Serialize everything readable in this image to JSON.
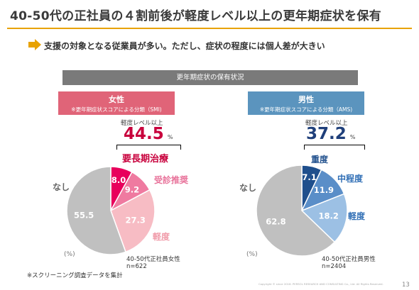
{
  "title": "40-50代の正社員の４割前後が軽度レベル以上の更年期症状を保有",
  "lead": "支援の対象となる従業員が多い。ただし、症状の程度には個人差が大きい",
  "panel_header": "更年期症状の保有状況",
  "footnote": "※スクリーニング調査データを集計",
  "copyright": "Copyright © since 2018. PERSOL RESEARCH AND CONSULTING Co., Ltd. All Rights Reserved.",
  "page_number": "13",
  "colors": {
    "accent": "#e8a200",
    "female": "#e06478",
    "male": "#5b94be",
    "none": "#c0c0c0"
  },
  "chart_data": [
    {
      "type": "pie",
      "gender_label": "女性",
      "scale_note": "※更年期症状スコアによる分類（SMI)",
      "level_label": "軽度レベル以上",
      "level_value": "44.5",
      "level_unit": "%",
      "unit_note": "(%)",
      "sample_label": "40-50代正社員女性",
      "sample_n": "n=622",
      "none_label": "なし",
      "color": "#e06478",
      "slices": [
        {
          "label": "要長期治療",
          "value": 8.0,
          "display": "8.0",
          "color": "#e8005c",
          "label_color": "#c8003c"
        },
        {
          "label": "受診推奨",
          "value": 9.2,
          "display": "9.2",
          "color": "#ef7aa0",
          "label_color": "#e8729a"
        },
        {
          "label": "軽度",
          "value": 27.3,
          "display": "27.3",
          "color": "#f7bcc4",
          "label_color": "#f09aa8"
        },
        {
          "label": "なし",
          "value": 55.5,
          "display": "55.5",
          "color": "#c0c0c0",
          "label_color": "#666666"
        }
      ]
    },
    {
      "type": "pie",
      "gender_label": "男性",
      "scale_note": "※更年期症状スコアによる分類（AMS)",
      "level_label": "軽度レベル以上",
      "level_value": "37.2",
      "level_unit": "%",
      "unit_note": "(%)",
      "sample_label": "40-50代正社員男性",
      "sample_n": "n=2404",
      "none_label": "なし",
      "color": "#5b94be",
      "slices": [
        {
          "label": "重度",
          "value": 7.1,
          "display": "7.1",
          "color": "#1f4f8c",
          "label_color": "#1f4f8c"
        },
        {
          "label": "中程度",
          "value": 11.9,
          "display": "11.9",
          "color": "#5a8ec8",
          "label_color": "#2f6eb5"
        },
        {
          "label": "軽度",
          "value": 18.2,
          "display": "18.2",
          "color": "#9cc0e4",
          "label_color": "#2f6eb5"
        },
        {
          "label": "なし",
          "value": 62.8,
          "display": "62.8",
          "color": "#c0c0c0",
          "label_color": "#666666"
        }
      ]
    }
  ]
}
